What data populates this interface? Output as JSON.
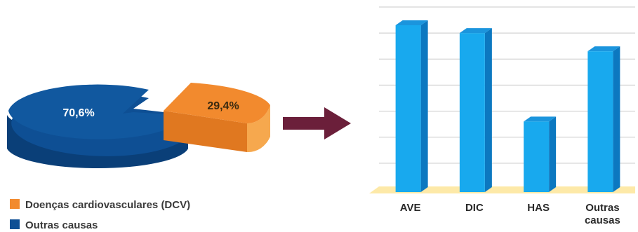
{
  "chart_data": [
    {
      "type": "pie",
      "slices": [
        {
          "label": "Outras causas",
          "value": 70.6,
          "display": "70,6%",
          "color": "#0e4f94"
        },
        {
          "label": "Doenças cardiovasculares (DCV)",
          "value": 29.4,
          "display": "29,4%",
          "color": "#f28a2e"
        }
      ],
      "style": "3d-exploded",
      "legend": [
        {
          "label": "Doenças cardiovasculares (DCV)",
          "color": "#f28a2e"
        },
        {
          "label": "Outras causas",
          "color": "#0e4f94"
        }
      ],
      "legend_position": "bottom-left"
    },
    {
      "type": "bar",
      "style": "3d",
      "categories": [
        "AVE",
        "DIC",
        "HAS",
        "Outras causas"
      ],
      "category_lines": [
        [
          "AVE"
        ],
        [
          "DIC"
        ],
        [
          "HAS"
        ],
        [
          "Outras",
          "causas"
        ]
      ],
      "values": [
        6.3,
        6.0,
        2.6,
        5.3
      ],
      "ylim": [
        0,
        7
      ],
      "grid": true,
      "bar_color": "#18a9ee",
      "floor_color": "#fde9a8"
    }
  ],
  "arrow_color": "#6b1f3a"
}
